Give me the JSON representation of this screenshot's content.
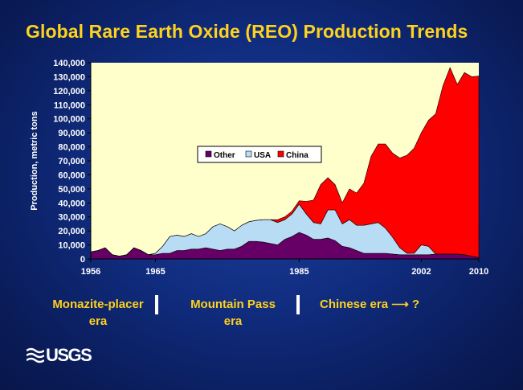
{
  "title": "Global Rare Earth Oxide (REO) Production Trends",
  "chart_data": {
    "type": "area",
    "stacked": true,
    "ylabel": "Production, metric tons",
    "xlabel": "",
    "xlim": [
      1956,
      2010
    ],
    "ylim": [
      0,
      140000
    ],
    "x_ticks": [
      1956,
      1965,
      1985,
      2002,
      2010
    ],
    "y_ticks": [
      0,
      10000,
      20000,
      30000,
      40000,
      50000,
      60000,
      70000,
      80000,
      90000,
      100000,
      110000,
      120000,
      130000,
      140000
    ],
    "y_tick_labels": [
      "0",
      "10,000",
      "20,000",
      "30,000",
      "40,000",
      "50,000",
      "60,000",
      "70,000",
      "80,000",
      "90,000",
      "100,000",
      "110,000",
      "120,000",
      "130,000",
      "140,000"
    ],
    "grid": false,
    "legend_position": "center-left",
    "years": [
      1956,
      1957,
      1958,
      1959,
      1960,
      1961,
      1962,
      1963,
      1964,
      1965,
      1966,
      1967,
      1968,
      1969,
      1970,
      1971,
      1972,
      1973,
      1974,
      1975,
      1976,
      1977,
      1978,
      1979,
      1980,
      1981,
      1982,
      1983,
      1984,
      1985,
      1986,
      1987,
      1988,
      1989,
      1990,
      1991,
      1992,
      1993,
      1994,
      1995,
      1996,
      1997,
      1998,
      1999,
      2000,
      2001,
      2002,
      2003,
      2004,
      2005,
      2006,
      2007,
      2008,
      2009,
      2010
    ],
    "series": [
      {
        "name": "Other",
        "color": "#660066",
        "values": [
          5000,
          6000,
          8000,
          3000,
          2000,
          3000,
          8000,
          6000,
          3000,
          3000,
          4000,
          4000,
          6000,
          6000,
          7000,
          7000,
          8000,
          7000,
          6000,
          7000,
          7000,
          9000,
          12500,
          12500,
          12000,
          11000,
          10000,
          14000,
          16000,
          19000,
          17000,
          14000,
          14000,
          15000,
          13000,
          9000,
          8000,
          6000,
          4000,
          4000,
          4000,
          4000,
          3500,
          3000,
          3000,
          3000,
          3000,
          3000,
          3500,
          3500,
          3500,
          3500,
          3000,
          2000,
          1000
        ]
      },
      {
        "name": "USA",
        "color": "#b8dcf4",
        "values": [
          0,
          0,
          0,
          0,
          0,
          0,
          0,
          0,
          0,
          1000,
          5000,
          12000,
          11000,
          10000,
          11000,
          9000,
          10000,
          16000,
          19000,
          16000,
          13000,
          15000,
          14000,
          15000,
          16000,
          17000,
          16000,
          14000,
          16000,
          20000,
          15000,
          12000,
          11000,
          20000,
          22000,
          16000,
          20000,
          18000,
          20000,
          21000,
          22000,
          18000,
          12000,
          5000,
          1000,
          1000,
          7000,
          6000,
          0,
          0,
          0,
          0,
          0,
          0,
          0
        ]
      },
      {
        "name": "China",
        "color": "#ff0000",
        "values": [
          0,
          0,
          0,
          0,
          0,
          0,
          0,
          0,
          0,
          0,
          0,
          0,
          0,
          0,
          0,
          0,
          0,
          0,
          0,
          0,
          0,
          0,
          0,
          0,
          0,
          0,
          2000,
          2000,
          2000,
          2500,
          9000,
          16000,
          28000,
          23000,
          18000,
          15000,
          22000,
          23000,
          30000,
          48000,
          56000,
          60000,
          60000,
          64000,
          70000,
          75000,
          80000,
          90000,
          100000,
          120000,
          133000,
          121000,
          130000,
          128000,
          129500
        ]
      }
    ]
  },
  "eras": [
    {
      "label_line1": "Monazite-placer",
      "label_line2": "era"
    },
    {
      "label_line1": "Mountain Pass",
      "label_line2": "era"
    },
    {
      "label_line1": "Chinese era ⟶  ?",
      "label_line2": ""
    }
  ],
  "logo": {
    "text": "USGS"
  }
}
